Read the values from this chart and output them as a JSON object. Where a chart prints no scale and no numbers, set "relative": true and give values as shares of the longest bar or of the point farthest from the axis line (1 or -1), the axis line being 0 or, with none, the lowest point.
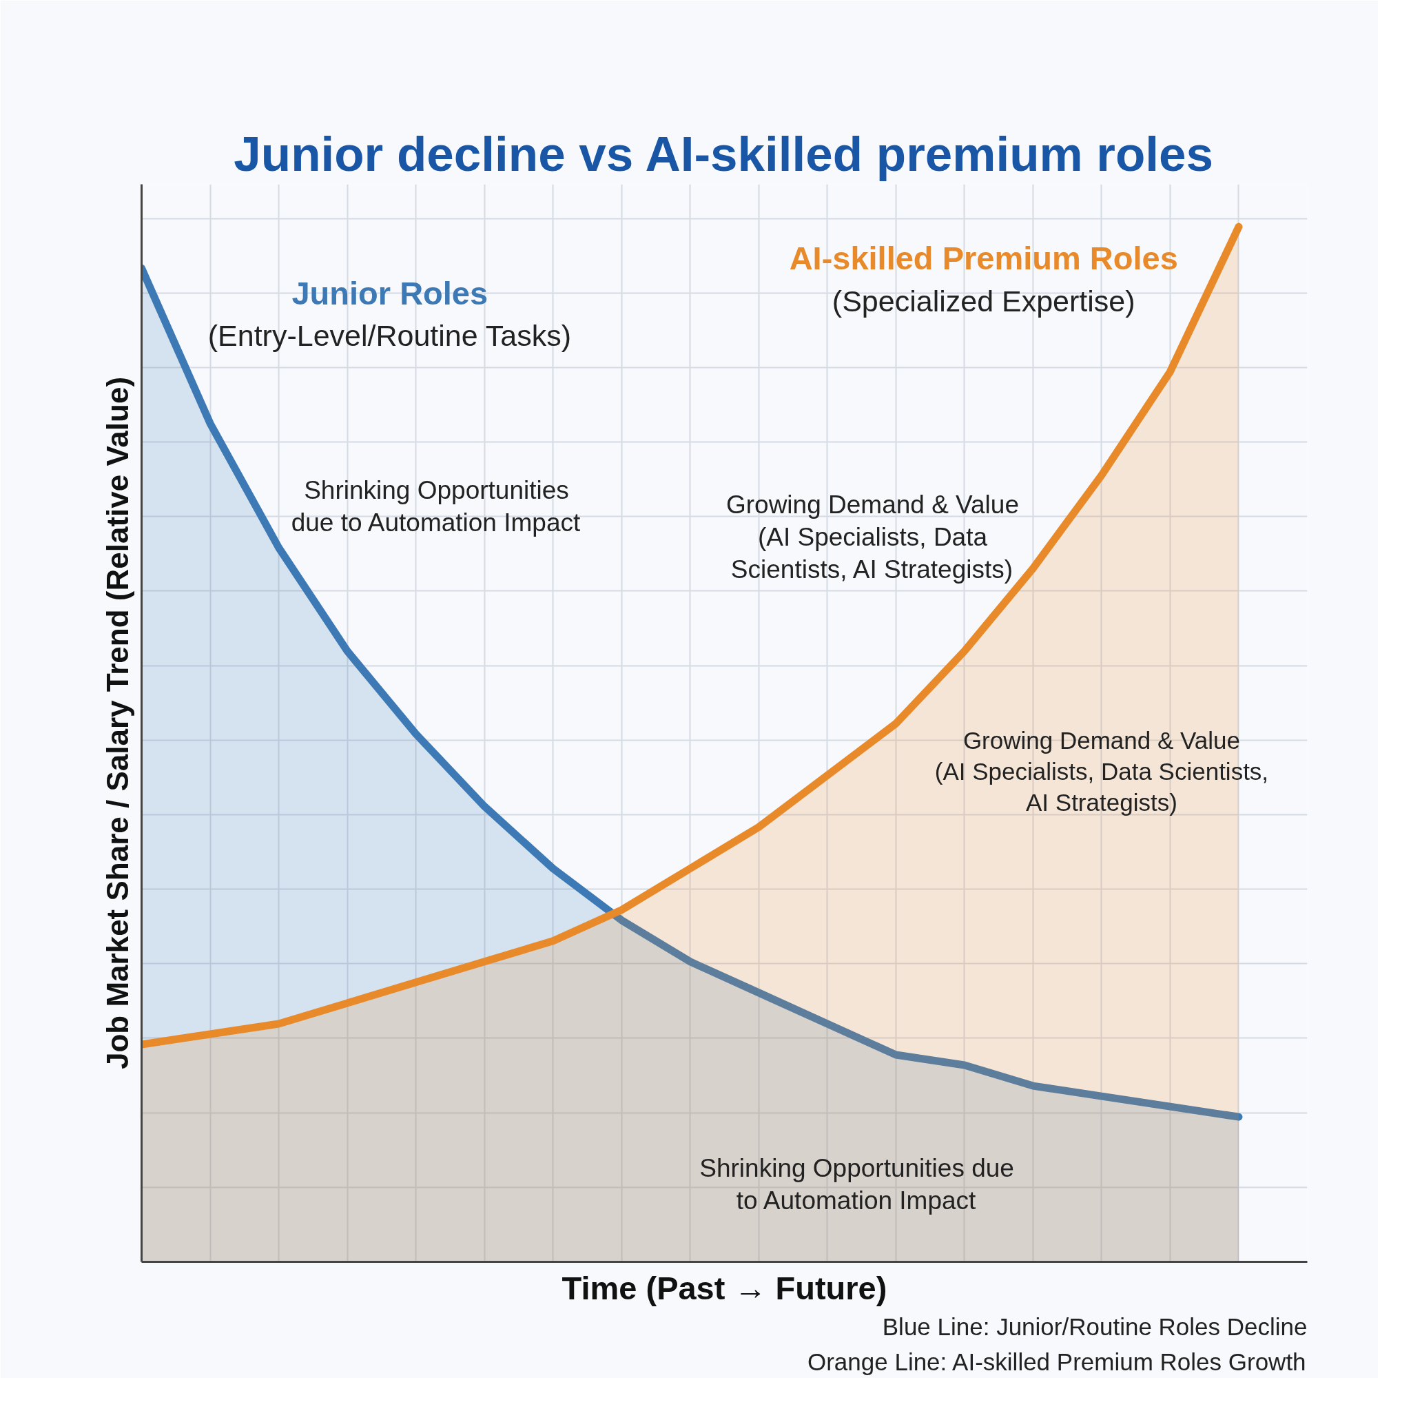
{
  "chart_data": {
    "type": "area",
    "title": "Junior decline vs AI-skilled premium roles",
    "xlabel": "Time (Past → Future)",
    "ylabel": "Job Market Share / Salary Trend (Relative Value)",
    "relative": true,
    "grid": true,
    "categories": [
      null,
      null,
      null,
      null,
      null,
      null,
      null,
      null,
      null,
      null,
      null,
      null,
      null,
      null,
      null,
      null,
      null
    ],
    "series": [
      {
        "name": "Junior Roles",
        "color": "#3d7ab5",
        "values": [
          0.96,
          0.81,
          0.69,
          0.59,
          0.51,
          0.44,
          0.38,
          0.33,
          0.29,
          0.26,
          0.23,
          0.2,
          0.19,
          0.17,
          0.16,
          0.15,
          0.14
        ]
      },
      {
        "name": "AI-skilled Premium Roles",
        "color": "#e8892a",
        "values": [
          0.21,
          0.22,
          0.23,
          0.25,
          0.27,
          0.29,
          0.31,
          0.34,
          0.38,
          0.42,
          0.47,
          0.52,
          0.59,
          0.67,
          0.76,
          0.86,
          1.0
        ]
      }
    ],
    "annotations": [
      "(Entry-Level/Routine Tasks)",
      "Shrinking Opportunities\ndue to Automation Impact",
      "(Specialized Expertise)",
      "Growing Demand & Value\n(AI Specialists, Data\nScientists, AI Strategists)",
      "Growing Demand & Value\n(AI Specialists, Data Scientists,\nAI Strategists)",
      "Shrinking Opportunities due\nto Automation Impact",
      "Blue Line: Junior/Routine Roles Decline",
      "Orange Line: AI-skilled Premium Roles Growth"
    ]
  }
}
